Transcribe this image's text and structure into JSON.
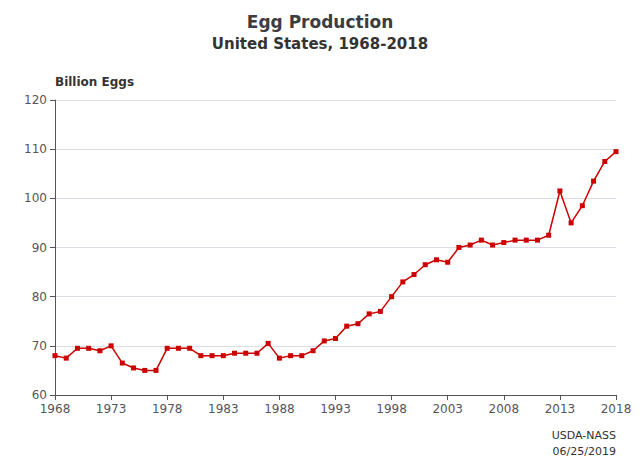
{
  "chart_data": {
    "type": "line",
    "title": "Egg Production",
    "subtitle": "United States, 1968-2018",
    "ylabel": "Billion Eggs",
    "annotations": [
      "USDA-NASS",
      "06/25/2019"
    ],
    "x": [
      1968,
      1969,
      1970,
      1971,
      1972,
      1973,
      1974,
      1975,
      1976,
      1977,
      1978,
      1979,
      1980,
      1981,
      1982,
      1983,
      1984,
      1985,
      1986,
      1987,
      1988,
      1989,
      1990,
      1991,
      1992,
      1993,
      1994,
      1995,
      1996,
      1997,
      1998,
      1999,
      2000,
      2001,
      2002,
      2003,
      2004,
      2005,
      2006,
      2007,
      2008,
      2009,
      2010,
      2011,
      2012,
      2013,
      2014,
      2015,
      2016,
      2017,
      2018
    ],
    "values": [
      68.0,
      67.5,
      69.5,
      69.5,
      69.0,
      70.0,
      66.5,
      65.5,
      65.0,
      65.0,
      69.5,
      69.5,
      69.5,
      68.0,
      68.0,
      68.0,
      68.5,
      68.5,
      68.5,
      70.5,
      67.5,
      68.0,
      68.0,
      69.0,
      71.0,
      71.5,
      74.0,
      74.5,
      76.5,
      77.0,
      80.0,
      83.0,
      84.5,
      86.5,
      87.5,
      87.0,
      90.0,
      90.5,
      91.5,
      90.5,
      91.0,
      91.5,
      91.5,
      91.5,
      92.5,
      101.5,
      95.0,
      98.5,
      103.5,
      107.5,
      109.5
    ],
    "color": "#CC0000",
    "marker": "square",
    "xlim": [
      1968,
      2018
    ],
    "ylim": [
      60,
      120
    ],
    "xticks": [
      1968,
      1973,
      1978,
      1983,
      1988,
      1993,
      1998,
      2003,
      2008,
      2013,
      2018
    ],
    "yticks": [
      60,
      70,
      80,
      90,
      100,
      110,
      120
    ],
    "grid": true
  }
}
